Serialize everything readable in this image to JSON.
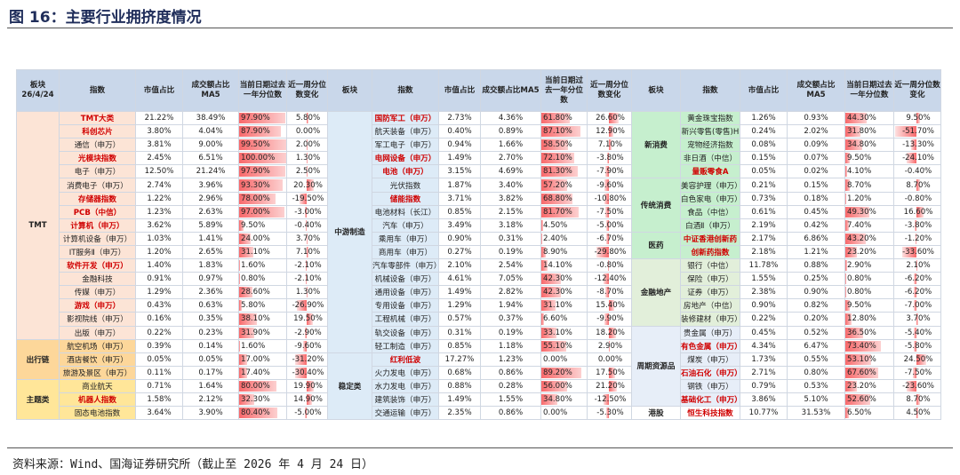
{
  "title": "图 16：主要行业拥挤度情况",
  "source": "资料来源：Wind、国海证券研究所（截止至 2026 年 4 月 24 日）",
  "table": {
    "header_date": "26/4/24",
    "headers": [
      "板块",
      "指数",
      "市值占比",
      "成交额占比MA5",
      "当前日期过去一年分位数",
      "近一周分位数变化"
    ],
    "groups": [
      {
        "sections": [
          {
            "label": "TMT",
            "color": "#fce4d6",
            "rows": [
              {
                "name": "TMT大类",
                "values": [
                  "21.22%",
                  "38.49%",
                  "97.90%",
                  "5.80%"
                ],
                "highlight": true
              },
              {
                "name": "科创芯片",
                "values": [
                  "3.80%",
                  "4.04%",
                  "87.90%",
                  "0.00%"
                ],
                "highlight": true
              },
              {
                "name": "通信（申万）",
                "values": [
                  "3.81%",
                  "9.00%",
                  "99.50%",
                  "2.00%"
                ]
              },
              {
                "name": "光模块指数",
                "values": [
                  "2.45%",
                  "6.51%",
                  "100.00%",
                  "1.30%"
                ],
                "highlight": true
              },
              {
                "name": "电子（申万）",
                "values": [
                  "12.50%",
                  "21.24%",
                  "97.90%",
                  "2.50%"
                ]
              },
              {
                "name": "消费电子（申万）",
                "values": [
                  "2.74%",
                  "3.96%",
                  "93.30%",
                  "20.30%"
                ]
              },
              {
                "name": "存储器指数",
                "values": [
                  "1.22%",
                  "2.96%",
                  "78.00%",
                  "-19.50%"
                ],
                "highlight": true
              },
              {
                "name": "PCB（中信）",
                "values": [
                  "1.23%",
                  "2.63%",
                  "97.00%",
                  "-3.00%"
                ],
                "highlight": true
              },
              {
                "name": "计算机（申万）",
                "values": [
                  "3.62%",
                  "5.89%",
                  "9.50%",
                  "-0.40%"
                ],
                "highlight": true
              },
              {
                "name": "计算机设备（申万）",
                "values": [
                  "1.03%",
                  "1.41%",
                  "24.00%",
                  "3.70%"
                ]
              },
              {
                "name": "IT服务Ⅱ（申万）",
                "values": [
                  "1.20%",
                  "2.65%",
                  "31.10%",
                  "7.10%"
                ]
              },
              {
                "name": "软件开发（申万）",
                "values": [
                  "1.40%",
                  "1.83%",
                  "1.60%",
                  "-2.10%"
                ],
                "highlight": true
              },
              {
                "name": "金融科技",
                "values": [
                  "0.91%",
                  "0.97%",
                  "0.80%",
                  "-2.10%"
                ]
              },
              {
                "name": "传媒（申万）",
                "values": [
                  "1.29%",
                  "2.36%",
                  "28.60%",
                  "1.30%"
                ]
              },
              {
                "name": "游戏（申万）",
                "values": [
                  "0.43%",
                  "0.63%",
                  "5.80%",
                  "-26.90%"
                ],
                "highlight": true
              },
              {
                "name": "影视院线（申万）",
                "values": [
                  "0.16%",
                  "0.35%",
                  "38.10%",
                  "19.50%"
                ]
              },
              {
                "name": "出版（申万）",
                "values": [
                  "0.22%",
                  "0.23%",
                  "31.90%",
                  "-2.90%"
                ]
              }
            ]
          },
          {
            "label": "出行链",
            "color": "#fdd79a",
            "rows": [
              {
                "name": "航空机场（申万）",
                "values": [
                  "0.39%",
                  "0.14%",
                  "1.60%",
                  "-9.60%"
                ]
              },
              {
                "name": "酒店餐饮（申万）",
                "values": [
                  "0.05%",
                  "0.05%",
                  "17.00%",
                  "-31.20%"
                ]
              },
              {
                "name": "旅游及景区（申万）",
                "values": [
                  "0.11%",
                  "0.17%",
                  "17.40%",
                  "-30.40%"
                ]
              }
            ]
          },
          {
            "label": "主题类",
            "color": "#ffe699",
            "rows": [
              {
                "name": "商业航天",
                "values": [
                  "0.71%",
                  "1.64%",
                  "80.00%",
                  "19.90%"
                ]
              },
              {
                "name": "机器人指数",
                "values": [
                  "1.58%",
                  "2.12%",
                  "32.30%",
                  "14.90%"
                ],
                "highlight": true
              },
              {
                "name": "固态电池指数",
                "values": [
                  "3.64%",
                  "3.90%",
                  "80.40%",
                  "-5.00%"
                ]
              }
            ]
          }
        ]
      },
      {
        "sections": [
          {
            "label": "中游制造",
            "color": "#ddebf7",
            "rows": [
              {
                "name": "国防军工（申万）",
                "values": [
                  "2.73%",
                  "4.36%",
                  "61.80%",
                  "26.60%"
                ],
                "highlight": true
              },
              {
                "name": "航天装备（申万）",
                "values": [
                  "0.40%",
                  "0.89%",
                  "87.10%",
                  "12.90%"
                ]
              },
              {
                "name": "军工电子（申万）",
                "values": [
                  "0.94%",
                  "1.66%",
                  "58.50%",
                  "7.10%"
                ]
              },
              {
                "name": "电网设备（申万）",
                "values": [
                  "1.49%",
                  "2.70%",
                  "72.10%",
                  "-3.80%"
                ],
                "highlight": true
              },
              {
                "name": "电池（申万）",
                "values": [
                  "3.15%",
                  "4.69%",
                  "81.30%",
                  "-7.90%"
                ],
                "highlight": true
              },
              {
                "name": "光伏指数",
                "values": [
                  "1.87%",
                  "3.40%",
                  "57.20%",
                  "-9.60%"
                ]
              },
              {
                "name": "储能指数",
                "values": [
                  "3.71%",
                  "3.82%",
                  "68.80%",
                  "-10.80%"
                ],
                "highlight": true
              },
              {
                "name": "电池材料（长江）",
                "values": [
                  "0.85%",
                  "2.15%",
                  "81.70%",
                  "-7.50%"
                ]
              },
              {
                "name": "汽车（申万）",
                "values": [
                  "3.49%",
                  "3.18%",
                  "4.50%",
                  "-5.00%"
                ]
              },
              {
                "name": "乘用车（申万）",
                "values": [
                  "0.90%",
                  "0.31%",
                  "2.40%",
                  "-6.70%"
                ]
              },
              {
                "name": "商用车（申万）",
                "values": [
                  "0.27%",
                  "0.19%",
                  "8.90%",
                  "-29.80%"
                ]
              },
              {
                "name": "汽车零部件（申万）",
                "values": [
                  "2.10%",
                  "2.54%",
                  "14.10%",
                  "-0.80%"
                ]
              },
              {
                "name": "机械设备（申万）",
                "values": [
                  "4.61%",
                  "7.05%",
                  "42.30%",
                  "-12.40%"
                ]
              },
              {
                "name": "通用设备（申万）",
                "values": [
                  "1.49%",
                  "2.82%",
                  "42.30%",
                  "-8.70%"
                ]
              },
              {
                "name": "专用设备（申万）",
                "values": [
                  "1.29%",
                  "1.94%",
                  "31.10%",
                  "15.40%"
                ]
              },
              {
                "name": "工程机械（申万）",
                "values": [
                  "0.57%",
                  "0.37%",
                  "6.60%",
                  "-9.90%"
                ]
              },
              {
                "name": "轨交设备（申万）",
                "values": [
                  "0.31%",
                  "0.19%",
                  "33.10%",
                  "18.20%"
                ]
              },
              {
                "name": "轻工制造（申万）",
                "values": [
                  "0.85%",
                  "1.18%",
                  "55.10%",
                  "2.90%"
                ]
              }
            ]
          },
          {
            "label": "稳定类",
            "color": "#ddebf7",
            "rows": [
              {
                "name": "红利低波",
                "values": [
                  "17.27%",
                  "1.23%",
                  "0.00%",
                  "0.00%"
                ],
                "highlight": true
              },
              {
                "name": "火力发电（申万）",
                "values": [
                  "0.68%",
                  "0.86%",
                  "89.20%",
                  "17.50%"
                ]
              },
              {
                "name": "水力发电（申万）",
                "values": [
                  "0.88%",
                  "0.28%",
                  "56.00%",
                  "21.20%"
                ]
              },
              {
                "name": "建筑装饰（申万）",
                "values": [
                  "1.49%",
                  "1.55%",
                  "34.80%",
                  "-12.50%"
                ]
              },
              {
                "name": "交通运输（申万）",
                "values": [
                  "2.35%",
                  "0.86%",
                  "0.00%",
                  "-5.30%"
                ]
              }
            ]
          }
        ]
      },
      {
        "sections": [
          {
            "label": "新消费",
            "color": "#c6efce",
            "rows": [
              {
                "name": "黄金珠宝指数",
                "values": [
                  "1.26%",
                  "0.93%",
                  "44.30%",
                  "9.50%"
                ]
              },
              {
                "name": "新兴零售(零售)H",
                "values": [
                  "0.24%",
                  "2.02%",
                  "31.80%",
                  "-51.70%"
                ]
              },
              {
                "name": "宠物经济指数",
                "values": [
                  "0.08%",
                  "0.09%",
                  "34.80%",
                  "-13.30%"
                ]
              },
              {
                "name": "非日酒（中信）",
                "values": [
                  "0.15%",
                  "0.07%",
                  "9.50%",
                  "-24.10%"
                ]
              },
              {
                "name": "量贩零食A",
                "values": [
                  "0.05%",
                  "0.02%",
                  "4.10%",
                  "-0.40%"
                ],
                "highlight": true
              }
            ]
          },
          {
            "label": "传统消费",
            "color": "#c6efce",
            "rows": [
              {
                "name": "美容护理（申万）",
                "values": [
                  "0.21%",
                  "0.15%",
                  "8.70%",
                  "8.70%"
                ]
              },
              {
                "name": "白色家电（申万）",
                "values": [
                  "0.73%",
                  "0.18%",
                  "1.20%",
                  "-0.80%"
                ]
              },
              {
                "name": "食品（中信）",
                "values": [
                  "0.61%",
                  "0.45%",
                  "49.30%",
                  "16.60%"
                ]
              },
              {
                "name": "白酒Ⅱ（申万）",
                "values": [
                  "2.19%",
                  "0.42%",
                  "7.40%",
                  "-3.80%"
                ]
              }
            ]
          },
          {
            "label": "医药",
            "color": "#c6efce",
            "rows": [
              {
                "name": "中证香港创新药",
                "values": [
                  "2.17%",
                  "6.86%",
                  "43.20%",
                  "-1.20%"
                ],
                "highlight": true
              },
              {
                "name": "创新药指数",
                "values": [
                  "2.18%",
                  "1.21%",
                  "23.20%",
                  "-33.60%"
                ],
                "highlight": true
              }
            ]
          },
          {
            "label": "金融地产",
            "color": "#e2efda",
            "rows": [
              {
                "name": "银行（中信）",
                "values": [
                  "11.78%",
                  "0.88%",
                  "2.90%",
                  "2.10%"
                ]
              },
              {
                "name": "保险（申万）",
                "values": [
                  "1.55%",
                  "0.25%",
                  "0.80%",
                  "-6.20%"
                ]
              },
              {
                "name": "证券（申万）",
                "values": [
                  "2.38%",
                  "0.90%",
                  "0.80%",
                  "-6.20%"
                ]
              },
              {
                "name": "房地产（中信）",
                "values": [
                  "0.90%",
                  "0.82%",
                  "9.50%",
                  "-7.00%"
                ]
              },
              {
                "name": "装修建材（申万）",
                "values": [
                  "0.22%",
                  "0.20%",
                  "12.80%",
                  "3.70%"
                ]
              }
            ]
          },
          {
            "label": "周期资源品",
            "color": "#e7eef8",
            "rows": [
              {
                "name": "贵金属（申万）",
                "values": [
                  "0.45%",
                  "0.52%",
                  "36.50%",
                  "-5.40%"
                ]
              },
              {
                "name": "有色金属（申万）",
                "values": [
                  "4.34%",
                  "6.47%",
                  "73.40%",
                  "-5.80%"
                ],
                "highlight": true
              },
              {
                "name": "煤炭（申万）",
                "values": [
                  "1.73%",
                  "0.55%",
                  "53.10%",
                  "24.50%"
                ]
              },
              {
                "name": "石油石化（申万）",
                "values": [
                  "2.71%",
                  "0.80%",
                  "67.60%",
                  "-7.50%"
                ],
                "highlight": true
              },
              {
                "name": "钢铁（申万）",
                "values": [
                  "0.79%",
                  "0.53%",
                  "23.20%",
                  "-23.60%"
                ]
              },
              {
                "name": "基础化工（申万）",
                "values": [
                  "3.86%",
                  "5.10%",
                  "52.60%",
                  "8.70%"
                ],
                "highlight": true
              }
            ]
          },
          {
            "label": "港股",
            "color": "#ffffff",
            "rows": [
              {
                "name": "恒生科技指数",
                "values": [
                  "10.77%",
                  "31.53%",
                  "6.50%",
                  "4.50%"
                ],
                "highlight": true
              }
            ]
          }
        ]
      }
    ]
  }
}
